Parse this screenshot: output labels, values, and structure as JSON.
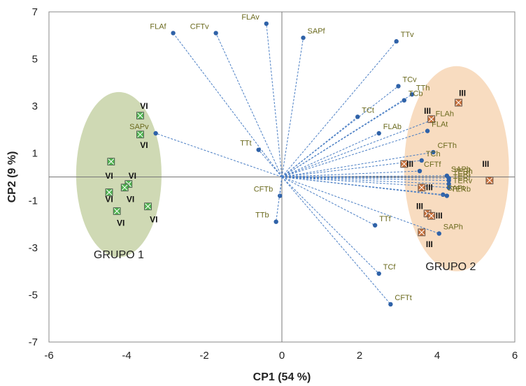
{
  "chart_data": {
    "type": "scatter",
    "xlabel": "CP1 (54 %)",
    "ylabel": "CP2 (9 %)",
    "xlim": [
      -6,
      6
    ],
    "ylim": [
      -7,
      7
    ],
    "xticks": [
      -6,
      -4,
      -2,
      0,
      2,
      4,
      6
    ],
    "yticks": [
      -7,
      -5,
      -3,
      -1,
      1,
      3,
      5,
      7
    ],
    "grid": false,
    "colors": {
      "vector": "#4a7ec4",
      "point": "#2f62a8",
      "label": "#6b6a1e",
      "group1_fill": "#cfd9b4",
      "group2_fill": "#f8dcc0",
      "group1_marker": "#4fb34f",
      "group2_marker": "#c8703a"
    },
    "variables": [
      {
        "name": "FLAf",
        "x": -2.8,
        "y": 6.1
      },
      {
        "name": "CFTv",
        "x": -1.7,
        "y": 6.1
      },
      {
        "name": "FLAv",
        "x": -0.4,
        "y": 6.5
      },
      {
        "name": "SAPf",
        "x": 0.55,
        "y": 5.9
      },
      {
        "name": "TTv",
        "x": 2.95,
        "y": 5.75
      },
      {
        "name": "TCv",
        "x": 3.0,
        "y": 3.85
      },
      {
        "name": "TTh",
        "x": 3.35,
        "y": 3.5
      },
      {
        "name": "TCt",
        "x": 1.95,
        "y": 2.55
      },
      {
        "name": "TCb",
        "x": 3.15,
        "y": 3.25
      },
      {
        "name": "FLAh",
        "x": 3.85,
        "y": 2.4
      },
      {
        "name": "FLAb",
        "x": 2.5,
        "y": 1.85
      },
      {
        "name": "FLAt",
        "x": 3.75,
        "y": 1.95
      },
      {
        "name": "SAPv",
        "x": -3.25,
        "y": 1.85
      },
      {
        "name": "TTt",
        "x": -0.6,
        "y": 1.15
      },
      {
        "name": "CFTh",
        "x": 3.9,
        "y": 1.05
      },
      {
        "name": "TCh",
        "x": 3.6,
        "y": 0.7
      },
      {
        "name": "CFTf",
        "x": 3.55,
        "y": 0.25
      },
      {
        "name": "SAPb",
        "x": 4.25,
        "y": 0.05
      },
      {
        "name": "TERh",
        "x": 4.3,
        "y": -0.05
      },
      {
        "name": "TERt",
        "x": 4.3,
        "y": -0.15
      },
      {
        "name": "TERf",
        "x": 4.3,
        "y": -0.3
      },
      {
        "name": "TERv",
        "x": 4.3,
        "y": -0.45
      },
      {
        "name": "SAPt",
        "x": 4.15,
        "y": -0.75
      },
      {
        "name": "TERb",
        "x": 4.25,
        "y": -0.8
      },
      {
        "name": "CFTb",
        "x": -0.05,
        "y": -0.8
      },
      {
        "name": "TTb",
        "x": -0.15,
        "y": -1.9
      },
      {
        "name": "TTf",
        "x": 2.4,
        "y": -2.05
      },
      {
        "name": "SAPh",
        "x": 4.05,
        "y": -2.4
      },
      {
        "name": "TCf",
        "x": 2.5,
        "y": -4.1
      },
      {
        "name": "CFTt",
        "x": 2.8,
        "y": -5.4
      }
    ],
    "observations": [
      {
        "group": "VI",
        "x": -3.65,
        "y": 2.6
      },
      {
        "group": "VI",
        "x": -3.65,
        "y": 1.8
      },
      {
        "group": "VI",
        "x": -4.4,
        "y": 0.65
      },
      {
        "group": "VI",
        "x": -3.95,
        "y": -0.3
      },
      {
        "group": "VI",
        "x": -4.05,
        "y": -0.45
      },
      {
        "group": "VI",
        "x": -4.45,
        "y": -0.65
      },
      {
        "group": "VI",
        "x": -4.25,
        "y": -1.45
      },
      {
        "group": "VI",
        "x": -3.45,
        "y": -1.25
      },
      {
        "group": "III",
        "x": 4.55,
        "y": 3.15
      },
      {
        "group": "III",
        "x": 3.85,
        "y": 2.45
      },
      {
        "group": "III",
        "x": 3.15,
        "y": 0.55
      },
      {
        "group": "III",
        "x": 3.6,
        "y": -0.45
      },
      {
        "group": "III",
        "x": 5.35,
        "y": -0.15
      },
      {
        "group": "III",
        "x": 3.75,
        "y": -1.55
      },
      {
        "group": "III",
        "x": 3.85,
        "y": -1.65
      },
      {
        "group": "III",
        "x": 3.6,
        "y": -2.35
      }
    ],
    "observation_labels": [
      {
        "text": "VI",
        "x": -3.55,
        "y": 3.0
      },
      {
        "text": "VI",
        "x": -3.55,
        "y": 1.35
      },
      {
        "text": "VI",
        "x": -4.45,
        "y": 0.05
      },
      {
        "text": "VI",
        "x": -3.85,
        "y": 0.05
      },
      {
        "text": "VI",
        "x": -4.45,
        "y": -0.95
      },
      {
        "text": "VI",
        "x": -3.9,
        "y": -0.95
      },
      {
        "text": "VI",
        "x": -4.15,
        "y": -1.95
      },
      {
        "text": "VI",
        "x": -3.3,
        "y": -1.8
      },
      {
        "text": "III",
        "x": 4.65,
        "y": 3.55
      },
      {
        "text": "III",
        "x": 3.75,
        "y": 2.8
      },
      {
        "text": "III",
        "x": 3.3,
        "y": 0.55
      },
      {
        "text": "III",
        "x": 3.8,
        "y": -0.45
      },
      {
        "text": "III",
        "x": 5.25,
        "y": 0.55
      },
      {
        "text": "III",
        "x": 3.55,
        "y": -1.25
      },
      {
        "text": "III",
        "x": 4.05,
        "y": -1.65
      },
      {
        "text": "III",
        "x": 3.8,
        "y": -2.85
      }
    ],
    "groups": [
      {
        "label": "GRUPO 1",
        "cx": -4.2,
        "cy": 0.1,
        "rx": 1.1,
        "ry": 3.5,
        "label_x": -4.2,
        "label_y": -3.45
      },
      {
        "label": "GRUPO 2",
        "cx": 4.5,
        "cy": 0.35,
        "rx": 1.35,
        "ry": 4.35,
        "label_x": 4.35,
        "label_y": -3.95
      }
    ]
  }
}
